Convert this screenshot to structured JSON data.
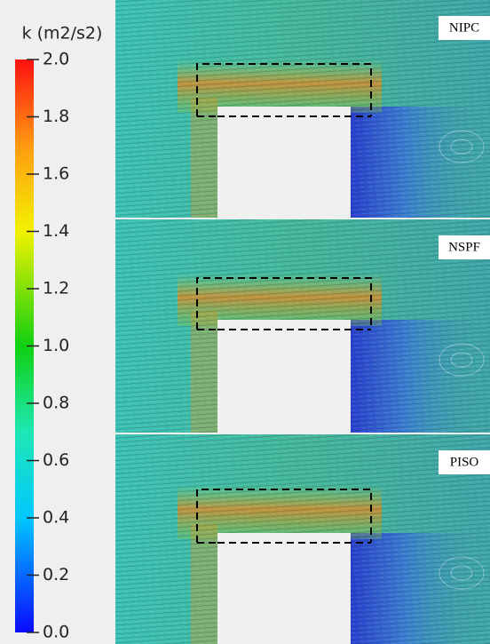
{
  "colorbar": {
    "title": "k (m2/s2)",
    "lim": [
      0,
      2
    ],
    "ticks": [
      {
        "value": 0,
        "label": "0.0"
      },
      {
        "value": 0.2,
        "label": "0.2"
      },
      {
        "value": 0.4,
        "label": "0.4"
      },
      {
        "value": 0.6,
        "label": "0.6"
      },
      {
        "value": 0.8,
        "label": "0.8"
      },
      {
        "value": 1,
        "label": "1.0"
      },
      {
        "value": 1.2,
        "label": "1.2"
      },
      {
        "value": 1.4,
        "label": "1.4"
      },
      {
        "value": 1.6,
        "label": "1.6"
      },
      {
        "value": 1.8,
        "label": "1.8"
      },
      {
        "value": 2,
        "label": "2.0"
      }
    ]
  },
  "panels": [
    {
      "label": "NIPC"
    },
    {
      "label": "NSPF"
    },
    {
      "label": "PISO"
    }
  ]
}
